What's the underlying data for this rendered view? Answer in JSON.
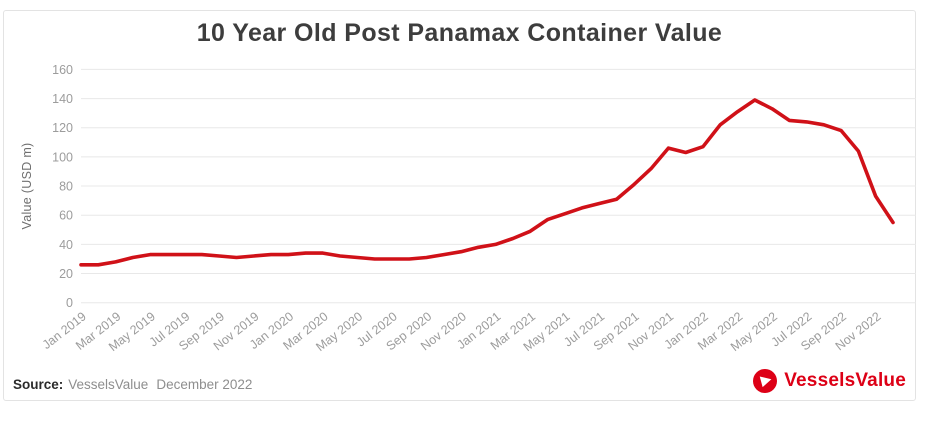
{
  "page": {
    "title": "10 Year Old Post Panamax Container Value"
  },
  "footer": {
    "source_label": "Source:",
    "source_name": "VesselsValue",
    "source_date": "December 2022",
    "logo_text": "VesselsValue"
  },
  "colors": {
    "line_red": "#d01118",
    "brand_red": "#dd0016",
    "title_text": "#3d3d3d",
    "axis_tick_text": "#9c9c9c",
    "axis_title_text": "#6f6f6f",
    "gridline": "#e8e8e8",
    "card_border": "#e3e3e3"
  },
  "chart_data": {
    "type": "line",
    "title": "10 Year Old Post Panamax Container Value",
    "xlabel": "",
    "ylabel": "Value (USD m)",
    "ylim": [
      0,
      160
    ],
    "yticks": [
      0,
      20,
      40,
      60,
      80,
      100,
      120,
      140,
      160
    ],
    "grid": "horizontal",
    "legend": "none",
    "x_tick_labels": [
      "Jan 2019",
      "Mar 2019",
      "May 2019",
      "Jul 2019",
      "Sep 2019",
      "Nov 2019",
      "Jan 2020",
      "Mar 2020",
      "May 2020",
      "Jul 2020",
      "Sep 2020",
      "Nov 2020",
      "Jan 2021",
      "Mar 2021",
      "May 2021",
      "Jul 2021",
      "Sep 2021",
      "Nov 2021",
      "Jan 2022",
      "Mar 2022",
      "May 2022",
      "Jul 2022",
      "Sep 2022",
      "Nov 2022"
    ],
    "categories": [
      "Jan 2019",
      "Feb 2019",
      "Mar 2019",
      "Apr 2019",
      "May 2019",
      "Jun 2019",
      "Jul 2019",
      "Aug 2019",
      "Sep 2019",
      "Oct 2019",
      "Nov 2019",
      "Dec 2019",
      "Jan 2020",
      "Feb 2020",
      "Mar 2020",
      "Apr 2020",
      "May 2020",
      "Jun 2020",
      "Jul 2020",
      "Aug 2020",
      "Sep 2020",
      "Oct 2020",
      "Nov 2020",
      "Dec 2020",
      "Jan 2021",
      "Feb 2021",
      "Mar 2021",
      "Apr 2021",
      "May 2021",
      "Jun 2021",
      "Jul 2021",
      "Aug 2021",
      "Sep 2021",
      "Oct 2021",
      "Nov 2021",
      "Dec 2021",
      "Jan 2022",
      "Feb 2022",
      "Mar 2022",
      "Apr 2022",
      "May 2022",
      "Jun 2022",
      "Jul 2022",
      "Aug 2022",
      "Sep 2022",
      "Oct 2022",
      "Nov 2022",
      "Dec 2022"
    ],
    "series": [
      {
        "name": "10 Year Old Post Panamax Container Value (USD m)",
        "color": "#d01118",
        "values": [
          26,
          26,
          28,
          31,
          33,
          33,
          33,
          33,
          32,
          31,
          32,
          33,
          33,
          34,
          34,
          32,
          31,
          30,
          30,
          30,
          31,
          33,
          35,
          38,
          40,
          44,
          49,
          57,
          61,
          65,
          68,
          71,
          81,
          92,
          106,
          103,
          107,
          122,
          131,
          139,
          133,
          125,
          124,
          122,
          118,
          104,
          73,
          55
        ]
      }
    ]
  }
}
